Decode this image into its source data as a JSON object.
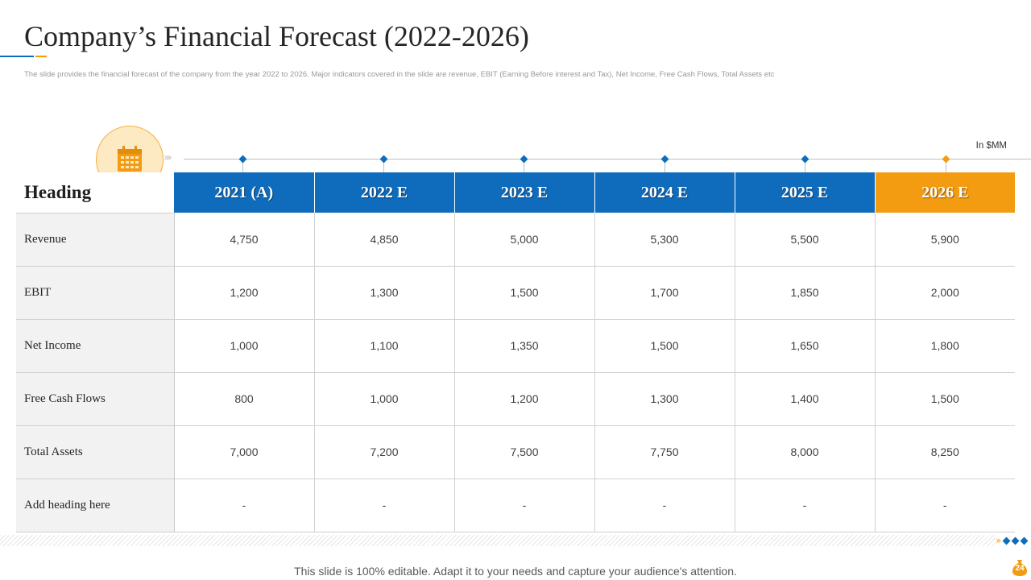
{
  "title": "Company’s Financial Forecast (2022-2026)",
  "subtitle": "The slide provides the financial forecast of the company from the year 2022 to 2026. Major indicators covered in the slide are revenue, EBIT  (Earning Before interest and Tax), Net Income,  Free Cash Flows, Total Assets etc",
  "unit_label": "In $MM",
  "colors": {
    "primary": "#0F6CBD",
    "accent": "#F39C12",
    "calendar_fill": "#FDE9C2"
  },
  "icons": {
    "calendar": "calendar-icon"
  },
  "table": {
    "heading": "Heading",
    "columns": [
      "2021 (A)",
      "2022 E",
      "2023 E",
      "2024 E",
      "2025 E",
      "2026 E"
    ],
    "rows": [
      {
        "label": "Revenue",
        "values": [
          "4,750",
          "4,850",
          "5,000",
          "5,300",
          "5,500",
          "5,900"
        ]
      },
      {
        "label": "EBIT",
        "values": [
          "1,200",
          "1,300",
          "1,500",
          "1,700",
          "1,850",
          "2,000"
        ]
      },
      {
        "label": "Net Income",
        "values": [
          "1,000",
          "1,100",
          "1,350",
          "1,500",
          "1,650",
          "1,800"
        ]
      },
      {
        "label": "Free Cash Flows",
        "values": [
          "800",
          "1,000",
          "1,200",
          "1,300",
          "1,400",
          "1,500"
        ]
      },
      {
        "label": "Total Assets",
        "values": [
          "7,000",
          "7,200",
          "7,500",
          "7,750",
          "8,000",
          "8,250"
        ]
      },
      {
        "label": "Add heading here",
        "values": [
          "-",
          "-",
          "-",
          "-",
          "-",
          "-"
        ]
      }
    ]
  },
  "footer": "This slide is 100% editable. Adapt it to your needs and capture your audience's attention.",
  "page_number": "24"
}
